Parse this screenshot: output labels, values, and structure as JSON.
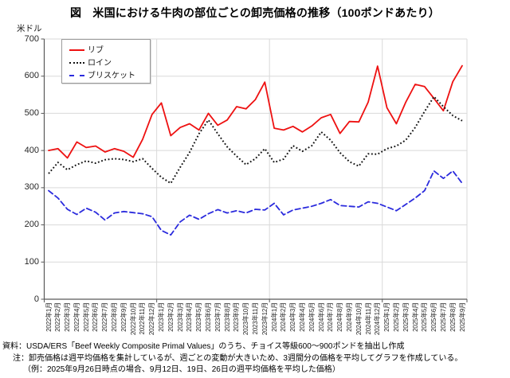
{
  "title": "図　米国における牛肉の部位ごとの卸売価格の推移（100ポンドあたり）",
  "y_axis_unit": "米ドル",
  "legend": [
    {
      "label": "リブ",
      "color": "#ee1111",
      "line_style": "solid"
    },
    {
      "label": "ロイン",
      "color": "#141414",
      "line_style": "dotted"
    },
    {
      "label": "ブリスケット",
      "color": "#2b2bdd",
      "line_style": "dashed"
    }
  ],
  "footnotes": [
    "資料：USDA/ERS「Beef Weekly Composite Primal Values」のうち、チョイス等級600～900ポンドを抽出し作成",
    "注：卸売価格は週平均価格を集計しているが、週ごとの変動が大きいため、3週間分の価格を平均してグラフを作成している。",
    "（例：2025年9月26日時点の場合、9月12日、19日、26日の週平均価格を平均した価格）"
  ],
  "chart_data": {
    "type": "line",
    "title": "米国における牛肉の部位ごとの卸売価格の推移（100ポンドあたり）",
    "ylabel": "米ドル",
    "ylim": [
      0,
      700
    ],
    "ytick_step": 100,
    "grid": true,
    "legend_position": "top-left",
    "x": [
      "2022年1月",
      "2022年2月",
      "2022年3月",
      "2022年4月",
      "2022年5月",
      "2022年6月",
      "2022年7月",
      "2022年8月",
      "2022年9月",
      "2022年10月",
      "2022年11月",
      "2022年12月",
      "2023年1月",
      "2023年2月",
      "2023年3月",
      "2023年4月",
      "2023年5月",
      "2023年6月",
      "2023年7月",
      "2023年8月",
      "2023年9月",
      "2023年10月",
      "2023年11月",
      "2023年12月",
      "2024年1月",
      "2024年2月",
      "2024年3月",
      "2024年4月",
      "2024年5月",
      "2024年6月",
      "2024年7月",
      "2024年8月",
      "2024年9月",
      "2024年10月",
      "2024年11月",
      "2024年12月",
      "2025年1月",
      "2025年2月",
      "2025年3月",
      "2025年4月",
      "2025年5月",
      "2025年6月",
      "2025年7月",
      "2025年8月",
      "2025年9月"
    ],
    "series": [
      {
        "name": "リブ",
        "color": "#ee1111",
        "line_style": "solid",
        "values": [
          400,
          405,
          380,
          423,
          408,
          412,
          396,
          405,
          398,
          382,
          430,
          497,
          528,
          440,
          462,
          472,
          455,
          500,
          468,
          482,
          518,
          512,
          537,
          584,
          460,
          455,
          465,
          450,
          466,
          488,
          497,
          446,
          478,
          477,
          530,
          627,
          515,
          472,
          530,
          578,
          572,
          540,
          507,
          585,
          628
        ]
      },
      {
        "name": "ロイン",
        "color": "#141414",
        "line_style": "dotted",
        "values": [
          338,
          368,
          348,
          362,
          372,
          366,
          375,
          378,
          376,
          370,
          378,
          352,
          328,
          312,
          355,
          395,
          445,
          482,
          445,
          410,
          385,
          362,
          378,
          405,
          368,
          377,
          413,
          398,
          413,
          450,
          428,
          394,
          370,
          358,
          391,
          390,
          405,
          412,
          428,
          462,
          505,
          545,
          518,
          494,
          480
        ]
      },
      {
        "name": "ブリスケット",
        "color": "#2b2bdd",
        "line_style": "dashed",
        "values": [
          292,
          272,
          242,
          228,
          245,
          234,
          213,
          232,
          236,
          233,
          230,
          222,
          185,
          173,
          208,
          226,
          215,
          230,
          241,
          232,
          238,
          232,
          242,
          240,
          258,
          227,
          240,
          245,
          250,
          258,
          268,
          252,
          250,
          248,
          262,
          258,
          248,
          238,
          255,
          272,
          292,
          345,
          325,
          345,
          312
        ]
      }
    ]
  }
}
